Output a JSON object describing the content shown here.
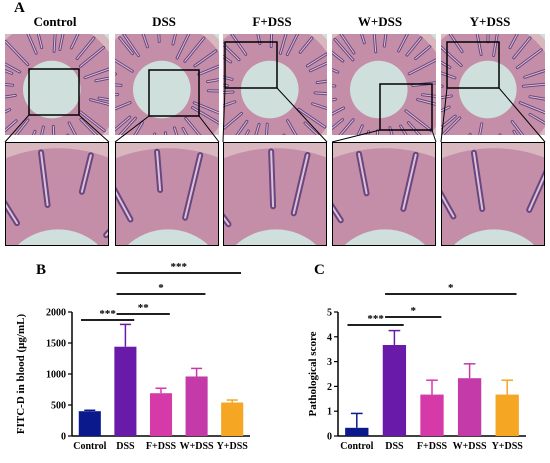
{
  "figure": {
    "panels": {
      "a": "A",
      "b": "B",
      "c": "C"
    },
    "groups": [
      "Control",
      "DSS",
      "F+DSS",
      "W+DSS",
      "Y+DSS"
    ],
    "icons": [
      "histology-micrograph"
    ]
  },
  "chart_data": [
    {
      "id": "B",
      "type": "bar",
      "categories": [
        "Control",
        "DSS",
        "F+DSS",
        "W+DSS",
        "Y+DSS"
      ],
      "values": [
        400,
        1440,
        690,
        960,
        540
      ],
      "errors": [
        15,
        360,
        80,
        130,
        40
      ],
      "colors": [
        "#0a1a8c",
        "#6a1aa8",
        "#d63aa8",
        "#c33aa8",
        "#f5a623"
      ],
      "ylabel": "FITC-D in blood (μg/mL)",
      "ylim": [
        0,
        2000
      ],
      "yticks": [
        0,
        500,
        1000,
        1500,
        2000
      ],
      "significance": [
        {
          "from": 0,
          "to": 1,
          "label": "***"
        },
        {
          "from": 1,
          "to": 2,
          "label": "**"
        },
        {
          "from": 1,
          "to": 3,
          "label": "*"
        },
        {
          "from": 1,
          "to": 4,
          "label": "***"
        }
      ]
    },
    {
      "id": "C",
      "type": "bar",
      "categories": [
        "Control",
        "DSS",
        "F+DSS",
        "W+DSS",
        "Y+DSS"
      ],
      "values": [
        0.33,
        3.67,
        1.67,
        2.33,
        1.67
      ],
      "errors": [
        0.58,
        0.58,
        0.58,
        0.58,
        0.58
      ],
      "colors": [
        "#0a1a8c",
        "#6a1aa8",
        "#d63aa8",
        "#c33aa8",
        "#f5a623"
      ],
      "ylabel": "Pathological score",
      "ylim": [
        0,
        5
      ],
      "yticks": [
        0,
        1,
        2,
        3,
        4,
        5
      ],
      "significance": [
        {
          "from": 0,
          "to": 1,
          "label": "***"
        },
        {
          "from": 1,
          "to": 2,
          "label": "*"
        },
        {
          "from": 1,
          "to": 4,
          "label": "*"
        }
      ]
    }
  ]
}
